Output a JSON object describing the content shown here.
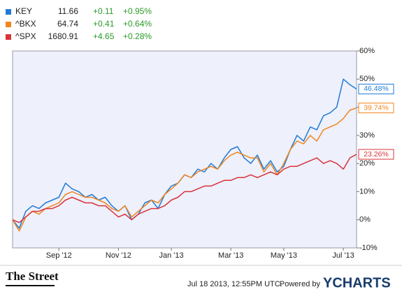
{
  "chart_data": {
    "type": "line",
    "categories": [
      null,
      null,
      null,
      null,
      null,
      null,
      null,
      "Sep '12",
      null,
      null,
      null,
      null,
      null,
      null,
      null,
      null,
      "Nov '12",
      null,
      null,
      null,
      null,
      null,
      null,
      null,
      "Jan '13",
      null,
      null,
      null,
      null,
      null,
      null,
      null,
      null,
      "Mar '13",
      null,
      null,
      null,
      null,
      null,
      null,
      null,
      "May '13",
      null,
      null,
      null,
      null,
      null,
      null,
      null,
      null,
      "Jul '13",
      null,
      null
    ],
    "series": [
      {
        "name": "KEY",
        "price": "11.66",
        "change": "+0.11",
        "change_pct": "+0.95%",
        "color": "#1f7bd6",
        "end_label": "46.48%",
        "values": [
          0,
          -3,
          3,
          5,
          4,
          6,
          7,
          8,
          13,
          11,
          10,
          8,
          9,
          7,
          8,
          5,
          3,
          5,
          0,
          2,
          6,
          7,
          4,
          9,
          12,
          13,
          16,
          15,
          18,
          17,
          20,
          18,
          22,
          25,
          26,
          22,
          20,
          23,
          18,
          21,
          17,
          19,
          25,
          30,
          28,
          33,
          32,
          37,
          38,
          40,
          50,
          48,
          46.48
        ]
      },
      {
        "name": "^BKX",
        "price": "64.74",
        "change": "+0.41",
        "change_pct": "+0.64%",
        "color": "#f0861e",
        "end_label": "39.74%",
        "values": [
          0,
          -4,
          1,
          3,
          2,
          4,
          5,
          6,
          9,
          10,
          9,
          8,
          8,
          7,
          6,
          4,
          3,
          5,
          1,
          3,
          5,
          7,
          6,
          9,
          11,
          13,
          16,
          15,
          17,
          18,
          19,
          18,
          21,
          23,
          24,
          23,
          22,
          22,
          17,
          20,
          16,
          20,
          25,
          28,
          27,
          30,
          28,
          32,
          33,
          34,
          36,
          39,
          39.74
        ]
      },
      {
        "name": "^SPX",
        "price": "1680.91",
        "change": "+4.65",
        "change_pct": "+0.28%",
        "color": "#d8333a",
        "end_label": "23.26%",
        "values": [
          0,
          -1,
          1,
          3,
          3,
          4,
          4,
          5,
          7,
          8,
          7,
          6,
          6,
          5,
          5,
          3,
          1,
          2,
          0,
          2,
          3,
          4,
          4,
          5,
          7,
          8,
          10,
          10,
          11,
          12,
          12,
          13,
          14,
          14,
          15,
          15,
          16,
          15,
          16,
          17,
          16,
          18,
          19,
          19,
          20,
          21,
          22,
          20,
          21,
          20,
          18,
          22,
          23.26
        ]
      }
    ],
    "ylim": [
      -10,
      60
    ],
    "yticks": [
      {
        "value": -10,
        "label": "-10%"
      },
      {
        "value": 0,
        "label": "0%"
      },
      {
        "value": 10,
        "label": "10%"
      },
      {
        "value": 20,
        "label": "20%"
      },
      {
        "value": 30,
        "label": "30%"
      },
      {
        "value": 40,
        "label": "40%"
      },
      {
        "value": 50,
        "label": "50%"
      },
      {
        "value": 60,
        "label": "60%"
      }
    ],
    "grid": false
  },
  "footer": {
    "source": "The Street",
    "timestamp": "Jul 18 2013, 12:55PM UTC.",
    "powered": "Powered by",
    "brand": "YCHARTS"
  }
}
